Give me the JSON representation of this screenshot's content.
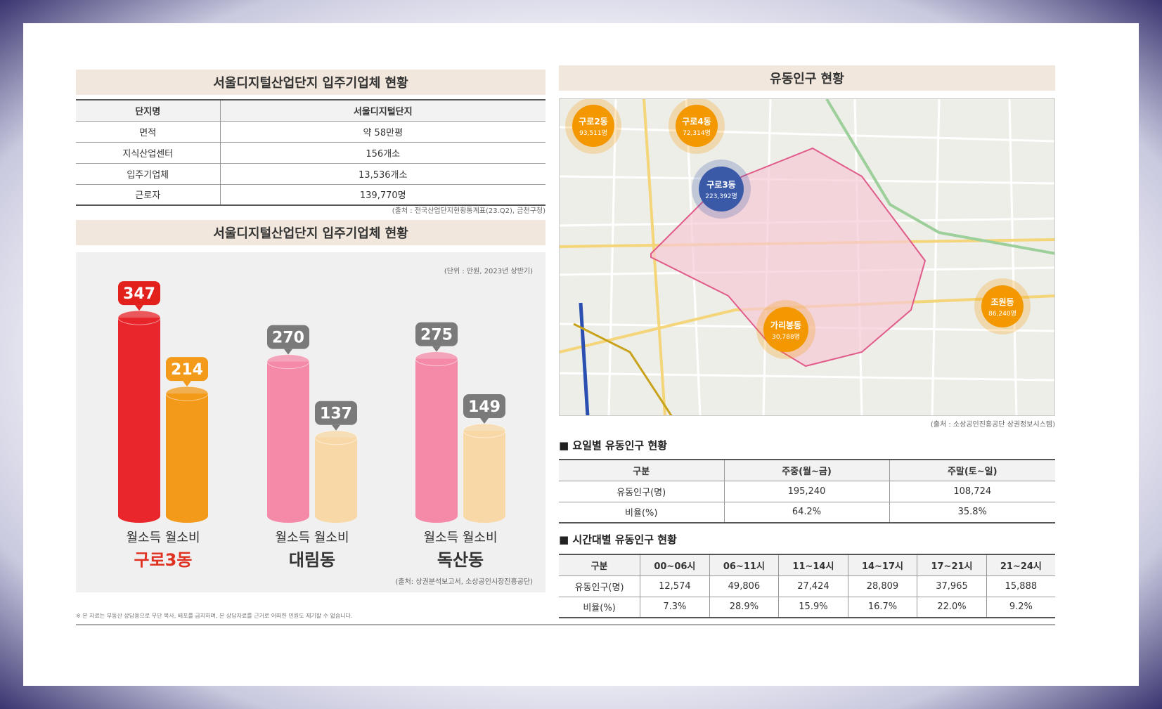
{
  "left": {
    "table_title": "서울디지털산업단지 입주기업체 현황",
    "table": {
      "header": [
        "단지명",
        "서울디지털단지"
      ],
      "rows": [
        [
          "면적",
          "약 58만평"
        ],
        [
          "지식산업센터",
          "156개소"
        ],
        [
          "입주기업체",
          "13,536개소"
        ],
        [
          "근로자",
          "139,770명"
        ]
      ]
    },
    "table_source": "(출처 : 전국산업단지현황통계표(23.Q2), 금천구청)",
    "chart_title": "서울디지털산업단지 입주기업체 현황",
    "chart_unit": "(단위 : 만원, 2023년 상반기)",
    "chart_source": "(출처: 상권분석보고서, 소상공인시장진흥공단)"
  },
  "chart_data": {
    "type": "bar",
    "categories": [
      "구로3동",
      "대림동",
      "독산동"
    ],
    "series": [
      {
        "name": "월소득",
        "values": [
          347,
          270,
          275
        ]
      },
      {
        "name": "월소비",
        "values": [
          214,
          137,
          149
        ]
      }
    ],
    "group_label": "월소득 월소비",
    "highlight_category": "구로3동",
    "colors": {
      "highlight_income": "#e8262b",
      "highlight_spend": "#f39a1a",
      "other_income": "#f48aa8",
      "other_spend": "#f8d8a6",
      "highlight_label_text": "#e03020"
    },
    "ylim": [
      0,
      400
    ]
  },
  "right": {
    "map_title": "유동인구 현황",
    "map_source": "(출처 : 소상공인진흥공단 상권정보시스템)",
    "bubbles": [
      {
        "name": "구로2동",
        "value": "93,511명",
        "color": "#f39800"
      },
      {
        "name": "구로4동",
        "value": "72,314명",
        "color": "#f39800"
      },
      {
        "name": "구로3동",
        "value": "223,392명",
        "color": "#3a5aa8"
      },
      {
        "name": "가리봉동",
        "value": "30,788명",
        "color": "#f39800"
      },
      {
        "name": "조원동",
        "value": "86,240명",
        "color": "#f39800"
      }
    ],
    "day_heading": "■ 요일별 유동인구 현황",
    "day_table": {
      "header": [
        "구분",
        "주중(월~금)",
        "주말(토~일)"
      ],
      "rows": [
        [
          "유동인구(명)",
          "195,240",
          "108,724"
        ],
        [
          "비율(%)",
          "64.2%",
          "35.8%"
        ]
      ]
    },
    "time_heading": "■ 시간대별 유동인구 현황",
    "time_table": {
      "header": [
        "구분",
        "00~06시",
        "06~11시",
        "11~14시",
        "14~17시",
        "17~21시",
        "21~24시"
      ],
      "rows": [
        [
          "유동인구(명)",
          "12,574",
          "49,806",
          "27,424",
          "28,809",
          "37,965",
          "15,888"
        ],
        [
          "비율(%)",
          "7.3%",
          "28.9%",
          "15.9%",
          "16.7%",
          "22.0%",
          "9.2%"
        ]
      ]
    }
  },
  "footnote": "※ 본 자료는 부동산 상담용으로 무단 복사, 배포를 금지하며, 본 상담자료를 근거로 어떠한 민원도 제기할 수 없습니다."
}
